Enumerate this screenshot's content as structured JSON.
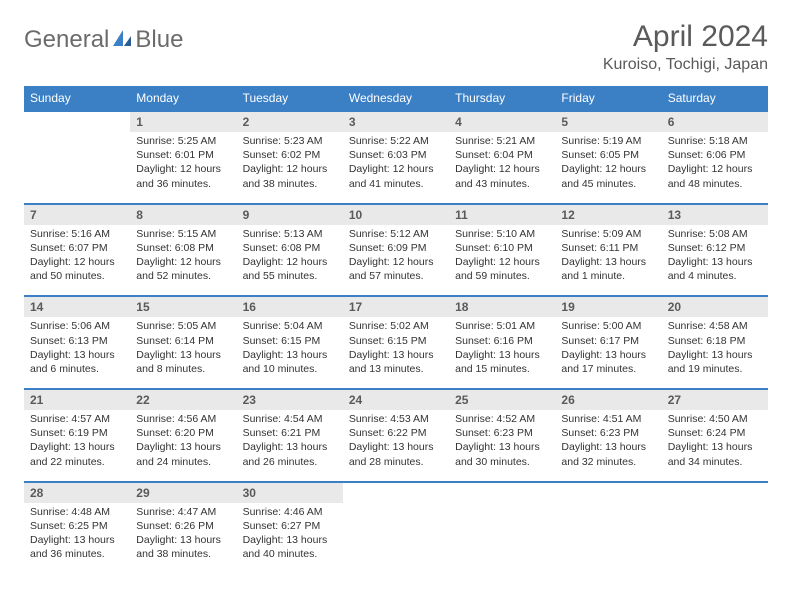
{
  "brand": {
    "text1": "General",
    "text2": "Blue",
    "text_color_gray": "#6b6b6b",
    "text_color_blue": "#3b7fc4"
  },
  "header": {
    "month_title": "April 2024",
    "location": "Kuroiso, Tochigi, Japan"
  },
  "colors": {
    "header_bg": "#3b7fc4",
    "daynum_bg": "#e9e9e9",
    "border": "#3b7fc4",
    "text": "#333333"
  },
  "day_names": [
    "Sunday",
    "Monday",
    "Tuesday",
    "Wednesday",
    "Thursday",
    "Friday",
    "Saturday"
  ],
  "weeks": [
    {
      "nums": [
        "",
        "1",
        "2",
        "3",
        "4",
        "5",
        "6"
      ],
      "cells": [
        {
          "sunrise": "",
          "sunset": "",
          "daylight": ""
        },
        {
          "sunrise": "Sunrise: 5:25 AM",
          "sunset": "Sunset: 6:01 PM",
          "daylight": "Daylight: 12 hours and 36 minutes."
        },
        {
          "sunrise": "Sunrise: 5:23 AM",
          "sunset": "Sunset: 6:02 PM",
          "daylight": "Daylight: 12 hours and 38 minutes."
        },
        {
          "sunrise": "Sunrise: 5:22 AM",
          "sunset": "Sunset: 6:03 PM",
          "daylight": "Daylight: 12 hours and 41 minutes."
        },
        {
          "sunrise": "Sunrise: 5:21 AM",
          "sunset": "Sunset: 6:04 PM",
          "daylight": "Daylight: 12 hours and 43 minutes."
        },
        {
          "sunrise": "Sunrise: 5:19 AM",
          "sunset": "Sunset: 6:05 PM",
          "daylight": "Daylight: 12 hours and 45 minutes."
        },
        {
          "sunrise": "Sunrise: 5:18 AM",
          "sunset": "Sunset: 6:06 PM",
          "daylight": "Daylight: 12 hours and 48 minutes."
        }
      ]
    },
    {
      "nums": [
        "7",
        "8",
        "9",
        "10",
        "11",
        "12",
        "13"
      ],
      "cells": [
        {
          "sunrise": "Sunrise: 5:16 AM",
          "sunset": "Sunset: 6:07 PM",
          "daylight": "Daylight: 12 hours and 50 minutes."
        },
        {
          "sunrise": "Sunrise: 5:15 AM",
          "sunset": "Sunset: 6:08 PM",
          "daylight": "Daylight: 12 hours and 52 minutes."
        },
        {
          "sunrise": "Sunrise: 5:13 AM",
          "sunset": "Sunset: 6:08 PM",
          "daylight": "Daylight: 12 hours and 55 minutes."
        },
        {
          "sunrise": "Sunrise: 5:12 AM",
          "sunset": "Sunset: 6:09 PM",
          "daylight": "Daylight: 12 hours and 57 minutes."
        },
        {
          "sunrise": "Sunrise: 5:10 AM",
          "sunset": "Sunset: 6:10 PM",
          "daylight": "Daylight: 12 hours and 59 minutes."
        },
        {
          "sunrise": "Sunrise: 5:09 AM",
          "sunset": "Sunset: 6:11 PM",
          "daylight": "Daylight: 13 hours and 1 minute."
        },
        {
          "sunrise": "Sunrise: 5:08 AM",
          "sunset": "Sunset: 6:12 PM",
          "daylight": "Daylight: 13 hours and 4 minutes."
        }
      ]
    },
    {
      "nums": [
        "14",
        "15",
        "16",
        "17",
        "18",
        "19",
        "20"
      ],
      "cells": [
        {
          "sunrise": "Sunrise: 5:06 AM",
          "sunset": "Sunset: 6:13 PM",
          "daylight": "Daylight: 13 hours and 6 minutes."
        },
        {
          "sunrise": "Sunrise: 5:05 AM",
          "sunset": "Sunset: 6:14 PM",
          "daylight": "Daylight: 13 hours and 8 minutes."
        },
        {
          "sunrise": "Sunrise: 5:04 AM",
          "sunset": "Sunset: 6:15 PM",
          "daylight": "Daylight: 13 hours and 10 minutes."
        },
        {
          "sunrise": "Sunrise: 5:02 AM",
          "sunset": "Sunset: 6:15 PM",
          "daylight": "Daylight: 13 hours and 13 minutes."
        },
        {
          "sunrise": "Sunrise: 5:01 AM",
          "sunset": "Sunset: 6:16 PM",
          "daylight": "Daylight: 13 hours and 15 minutes."
        },
        {
          "sunrise": "Sunrise: 5:00 AM",
          "sunset": "Sunset: 6:17 PM",
          "daylight": "Daylight: 13 hours and 17 minutes."
        },
        {
          "sunrise": "Sunrise: 4:58 AM",
          "sunset": "Sunset: 6:18 PM",
          "daylight": "Daylight: 13 hours and 19 minutes."
        }
      ]
    },
    {
      "nums": [
        "21",
        "22",
        "23",
        "24",
        "25",
        "26",
        "27"
      ],
      "cells": [
        {
          "sunrise": "Sunrise: 4:57 AM",
          "sunset": "Sunset: 6:19 PM",
          "daylight": "Daylight: 13 hours and 22 minutes."
        },
        {
          "sunrise": "Sunrise: 4:56 AM",
          "sunset": "Sunset: 6:20 PM",
          "daylight": "Daylight: 13 hours and 24 minutes."
        },
        {
          "sunrise": "Sunrise: 4:54 AM",
          "sunset": "Sunset: 6:21 PM",
          "daylight": "Daylight: 13 hours and 26 minutes."
        },
        {
          "sunrise": "Sunrise: 4:53 AM",
          "sunset": "Sunset: 6:22 PM",
          "daylight": "Daylight: 13 hours and 28 minutes."
        },
        {
          "sunrise": "Sunrise: 4:52 AM",
          "sunset": "Sunset: 6:23 PM",
          "daylight": "Daylight: 13 hours and 30 minutes."
        },
        {
          "sunrise": "Sunrise: 4:51 AM",
          "sunset": "Sunset: 6:23 PM",
          "daylight": "Daylight: 13 hours and 32 minutes."
        },
        {
          "sunrise": "Sunrise: 4:50 AM",
          "sunset": "Sunset: 6:24 PM",
          "daylight": "Daylight: 13 hours and 34 minutes."
        }
      ]
    },
    {
      "nums": [
        "28",
        "29",
        "30",
        "",
        "",
        "",
        ""
      ],
      "cells": [
        {
          "sunrise": "Sunrise: 4:48 AM",
          "sunset": "Sunset: 6:25 PM",
          "daylight": "Daylight: 13 hours and 36 minutes."
        },
        {
          "sunrise": "Sunrise: 4:47 AM",
          "sunset": "Sunset: 6:26 PM",
          "daylight": "Daylight: 13 hours and 38 minutes."
        },
        {
          "sunrise": "Sunrise: 4:46 AM",
          "sunset": "Sunset: 6:27 PM",
          "daylight": "Daylight: 13 hours and 40 minutes."
        },
        {
          "sunrise": "",
          "sunset": "",
          "daylight": ""
        },
        {
          "sunrise": "",
          "sunset": "",
          "daylight": ""
        },
        {
          "sunrise": "",
          "sunset": "",
          "daylight": ""
        },
        {
          "sunrise": "",
          "sunset": "",
          "daylight": ""
        }
      ]
    }
  ]
}
